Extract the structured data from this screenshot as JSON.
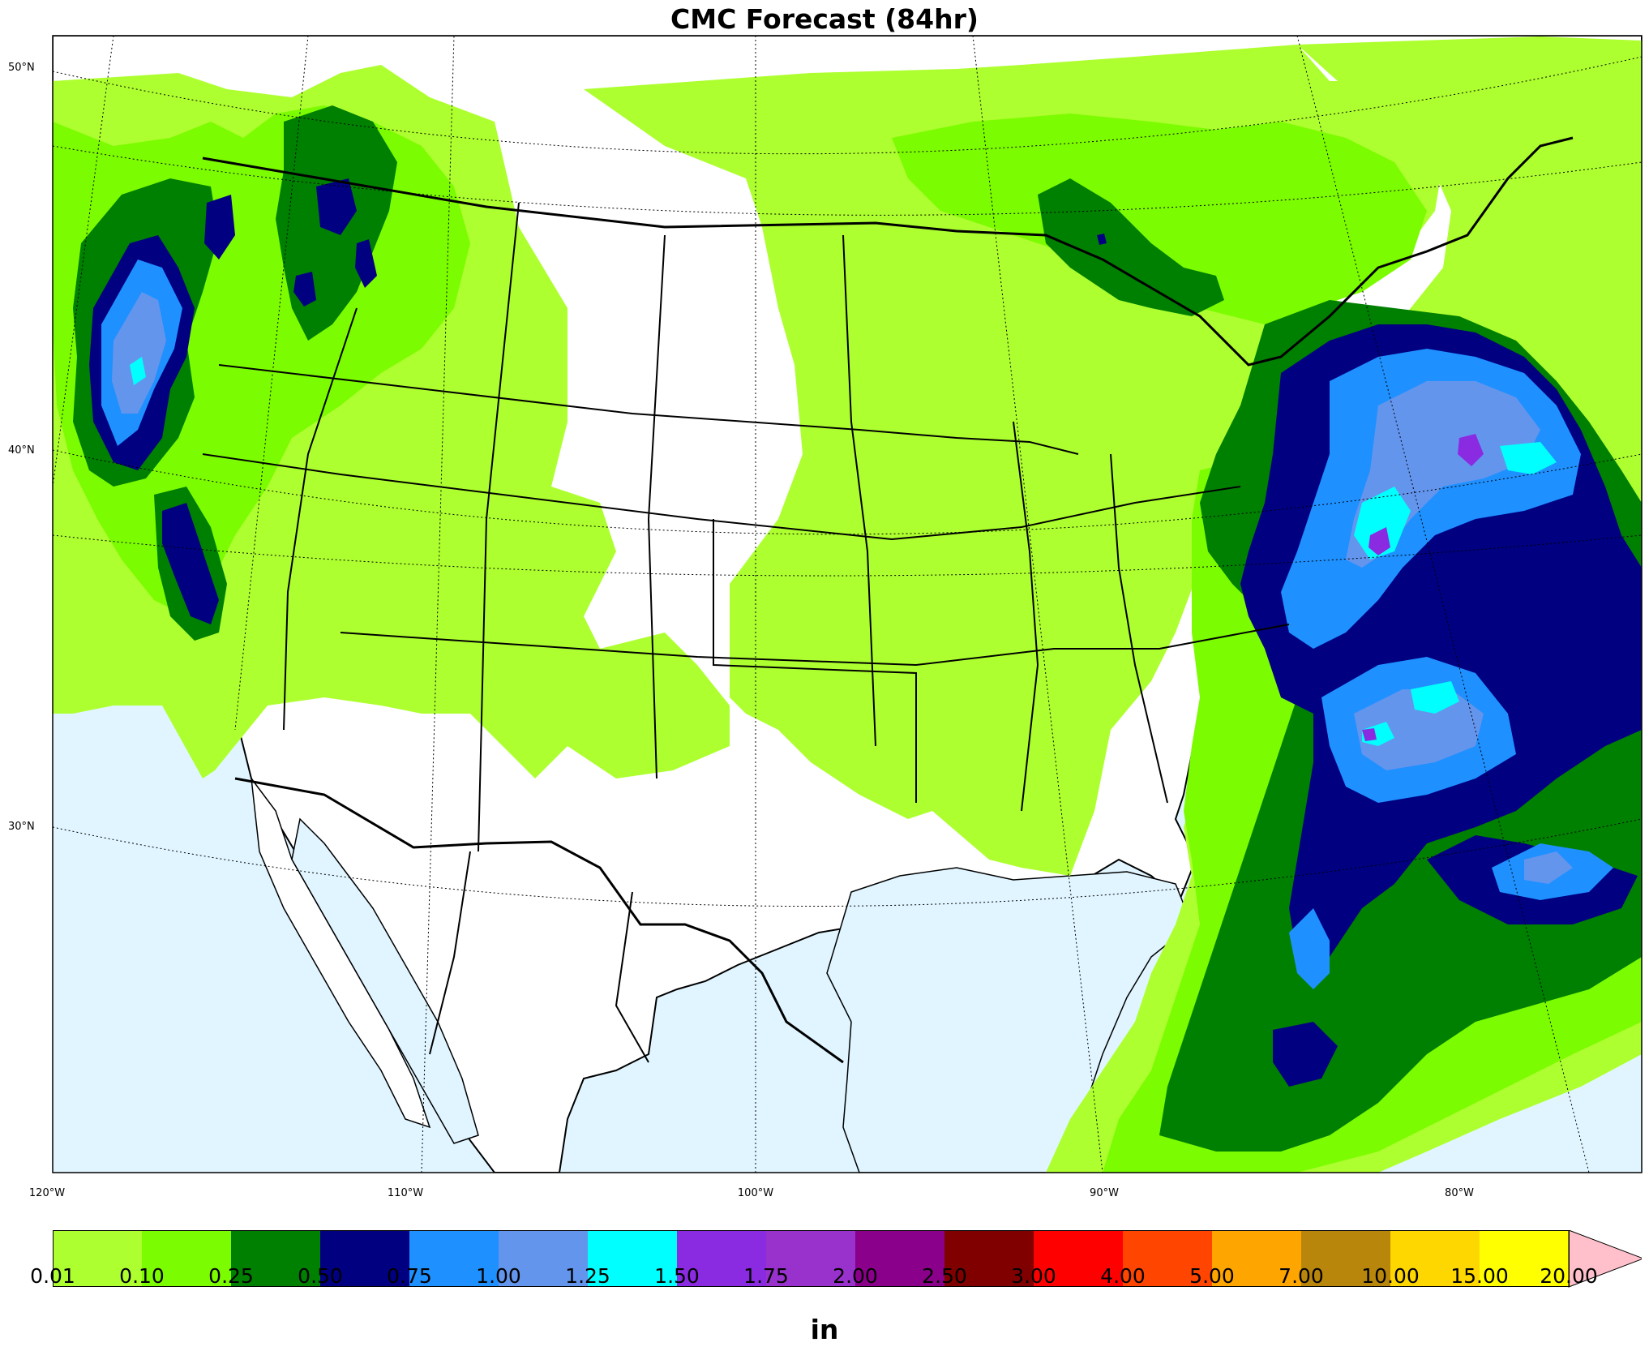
{
  "title": "CMC Forecast (84hr)",
  "lat_labels": [
    "50°N",
    "40°N",
    "30°N"
  ],
  "lon_labels": [
    "120°W",
    "110°W",
    "100°W",
    "90°W",
    "80°W"
  ],
  "colorbar": {
    "unit": "in",
    "ticks": [
      "0.01",
      "0.10",
      "0.25",
      "0.50",
      "0.75",
      "1.00",
      "1.25",
      "1.50",
      "1.75",
      "2.00",
      "2.50",
      "3.00",
      "4.00",
      "5.00",
      "7.00",
      "10.00",
      "15.00",
      "20.00"
    ],
    "colors": [
      "#adff2f",
      "#7cfc00",
      "#008000",
      "#000080",
      "#1e90ff",
      "#6495ed",
      "#00ffff",
      "#8a2be2",
      "#9932cc",
      "#8b008b",
      "#800000",
      "#ff0000",
      "#ff4500",
      "#ffa500",
      "#b8860b",
      "#ffd700",
      "#ffff00"
    ],
    "extend_color": "#ffc0cb"
  },
  "map": {
    "ocean_color": "#e0f5ff",
    "land_color": "#ffffff",
    "region": "Continental United States, southern Canada and northern Mexico"
  }
}
